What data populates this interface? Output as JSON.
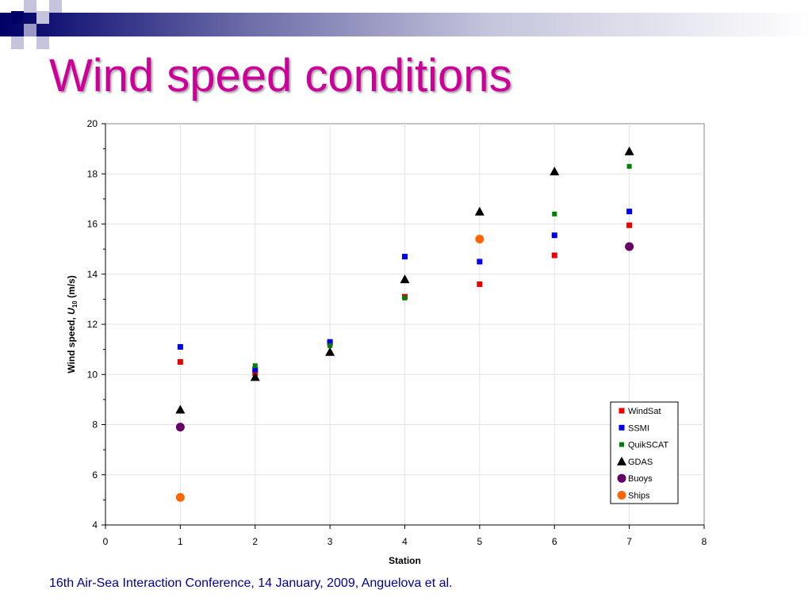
{
  "slide": {
    "title": "Wind speed conditions",
    "footer": "16th Air-Sea Interaction Conference, 14 January, 2009, Anguelova et al."
  },
  "chart_data": {
    "type": "scatter",
    "xlabel": "Station",
    "ylabel_parts": {
      "before": "Wind speed, ",
      "italic": "U",
      "sub": "10",
      "after": " (m/s)"
    },
    "xlim": [
      0,
      8
    ],
    "ylim": [
      4,
      20
    ],
    "xticks": [
      0,
      1,
      2,
      3,
      4,
      5,
      6,
      7,
      8
    ],
    "yticks": [
      4,
      6,
      8,
      10,
      12,
      14,
      16,
      18,
      20
    ],
    "grid": true,
    "legend_position": "bottom-right",
    "series": [
      {
        "name": "WindSat",
        "marker": "square",
        "color": "#e60000",
        "points": [
          [
            1,
            10.5
          ],
          [
            2,
            10.05
          ],
          [
            3,
            11.25
          ],
          [
            4,
            13.1
          ],
          [
            5,
            13.6
          ],
          [
            6,
            14.75
          ],
          [
            7,
            15.95
          ]
        ]
      },
      {
        "name": "SSMI",
        "marker": "square",
        "color": "#0000e6",
        "points": [
          [
            1,
            11.1
          ],
          [
            2,
            10.2
          ],
          [
            3,
            11.3
          ],
          [
            4,
            14.7
          ],
          [
            5,
            14.5
          ],
          [
            6,
            15.55
          ],
          [
            7,
            16.5
          ]
        ]
      },
      {
        "name": "QuikSCAT",
        "marker": "small-square",
        "color": "#008000",
        "points": [
          [
            2,
            10.35
          ],
          [
            3,
            11.15
          ],
          [
            4,
            13.05
          ],
          [
            6,
            16.4
          ],
          [
            7,
            18.3
          ]
        ]
      },
      {
        "name": "GDAS",
        "marker": "triangle",
        "color": "#000000",
        "points": [
          [
            1,
            8.6
          ],
          [
            2,
            9.9
          ],
          [
            3,
            10.9
          ],
          [
            4,
            13.8
          ],
          [
            5,
            16.5
          ],
          [
            6,
            18.1
          ],
          [
            7,
            18.9
          ]
        ]
      },
      {
        "name": "Buoys",
        "marker": "circle",
        "color": "#660066",
        "points": [
          [
            1,
            7.9
          ],
          [
            7,
            15.1
          ]
        ]
      },
      {
        "name": "Ships",
        "marker": "circle",
        "color": "#ff6600",
        "points": [
          [
            1,
            5.1
          ],
          [
            5,
            15.4
          ]
        ]
      }
    ]
  }
}
